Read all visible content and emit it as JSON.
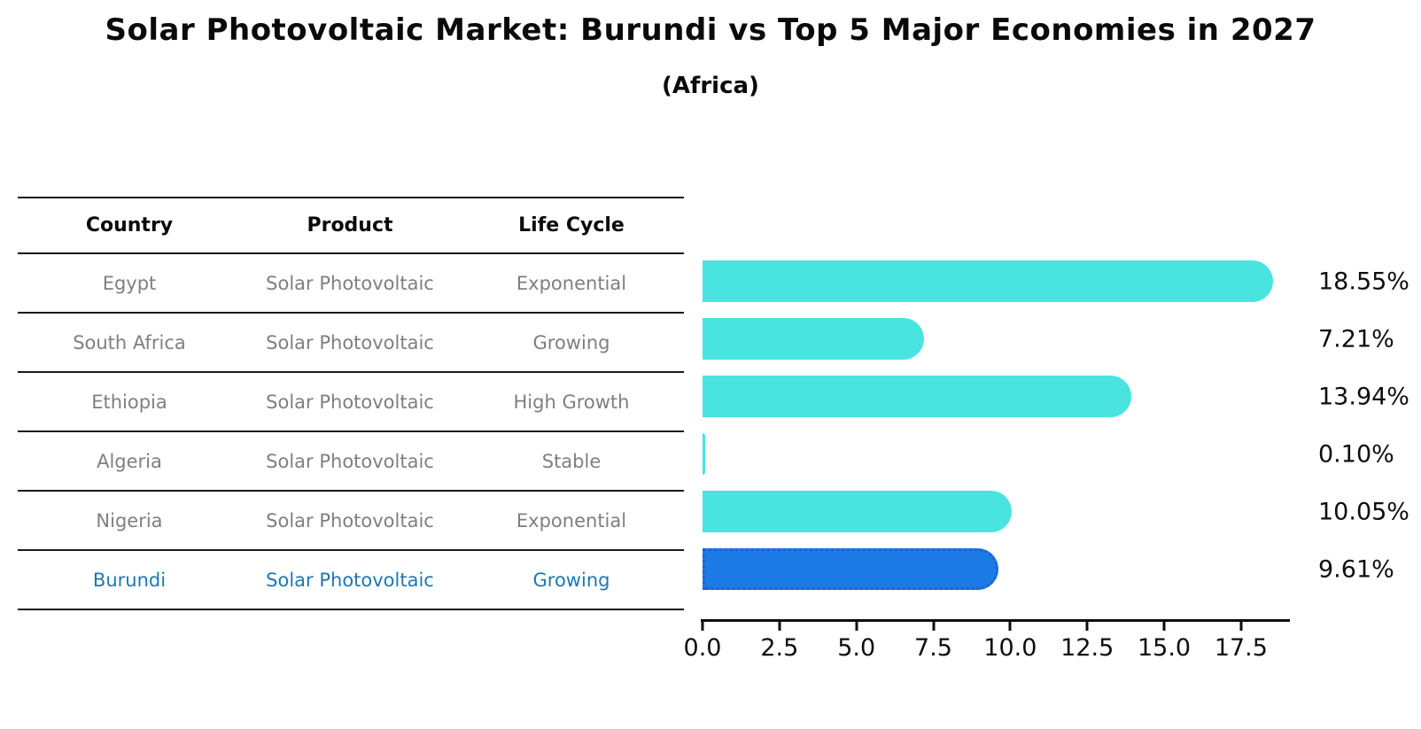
{
  "title": "Solar Photovoltaic Market: Burundi vs Top 5 Major Economies in 2027",
  "subtitle": "(Africa)",
  "table": {
    "headers": [
      "Country",
      "Product",
      "Life Cycle"
    ],
    "rows": [
      {
        "country": "Egypt",
        "product": "Solar Photovoltaic",
        "life_cycle": "Exponential",
        "highlight": false
      },
      {
        "country": "South Africa",
        "product": "Solar Photovoltaic",
        "life_cycle": "Growing",
        "highlight": false
      },
      {
        "country": "Ethiopia",
        "product": "Solar Photovoltaic",
        "life_cycle": "High Growth",
        "highlight": false
      },
      {
        "country": "Algeria",
        "product": "Solar Photovoltaic",
        "life_cycle": "Stable",
        "highlight": false
      },
      {
        "country": "Nigeria",
        "product": "Solar Photovoltaic",
        "life_cycle": "Exponential",
        "highlight": false
      },
      {
        "country": "Burundi",
        "product": "Solar Photovoltaic",
        "life_cycle": "Growing",
        "highlight": true
      }
    ]
  },
  "chart_data": {
    "type": "bar",
    "orientation": "horizontal",
    "title": "Solar Photovoltaic Market: Burundi vs Top 5 Major Economies in 2027",
    "subtitle": "(Africa)",
    "categories": [
      "Egypt",
      "South Africa",
      "Ethiopia",
      "Algeria",
      "Nigeria",
      "Burundi"
    ],
    "values": [
      18.55,
      7.21,
      13.94,
      0.1,
      10.05,
      9.61
    ],
    "value_labels": [
      "18.55%",
      "7.21%",
      "13.94%",
      "0.10%",
      "10.05%",
      "9.61%"
    ],
    "highlight_index": 5,
    "x_ticks": [
      0.0,
      2.5,
      5.0,
      7.5,
      10.0,
      12.5,
      15.0,
      17.5
    ],
    "x_tick_labels": [
      "0.0",
      "2.5",
      "5.0",
      "7.5",
      "10.0",
      "12.5",
      "15.0",
      "17.5"
    ],
    "xlim": [
      0,
      19.0
    ],
    "xlabel": "",
    "ylabel": "",
    "grid": false,
    "legend": false,
    "colors": {
      "bar_default": "#49e4df",
      "bar_highlight": "#1c7ae6",
      "highlight_border": "#1a63d4",
      "highlight_text": "#1f77b4",
      "muted_text": "#7f7f7f",
      "axis_text": "#0e0e0e"
    }
  }
}
